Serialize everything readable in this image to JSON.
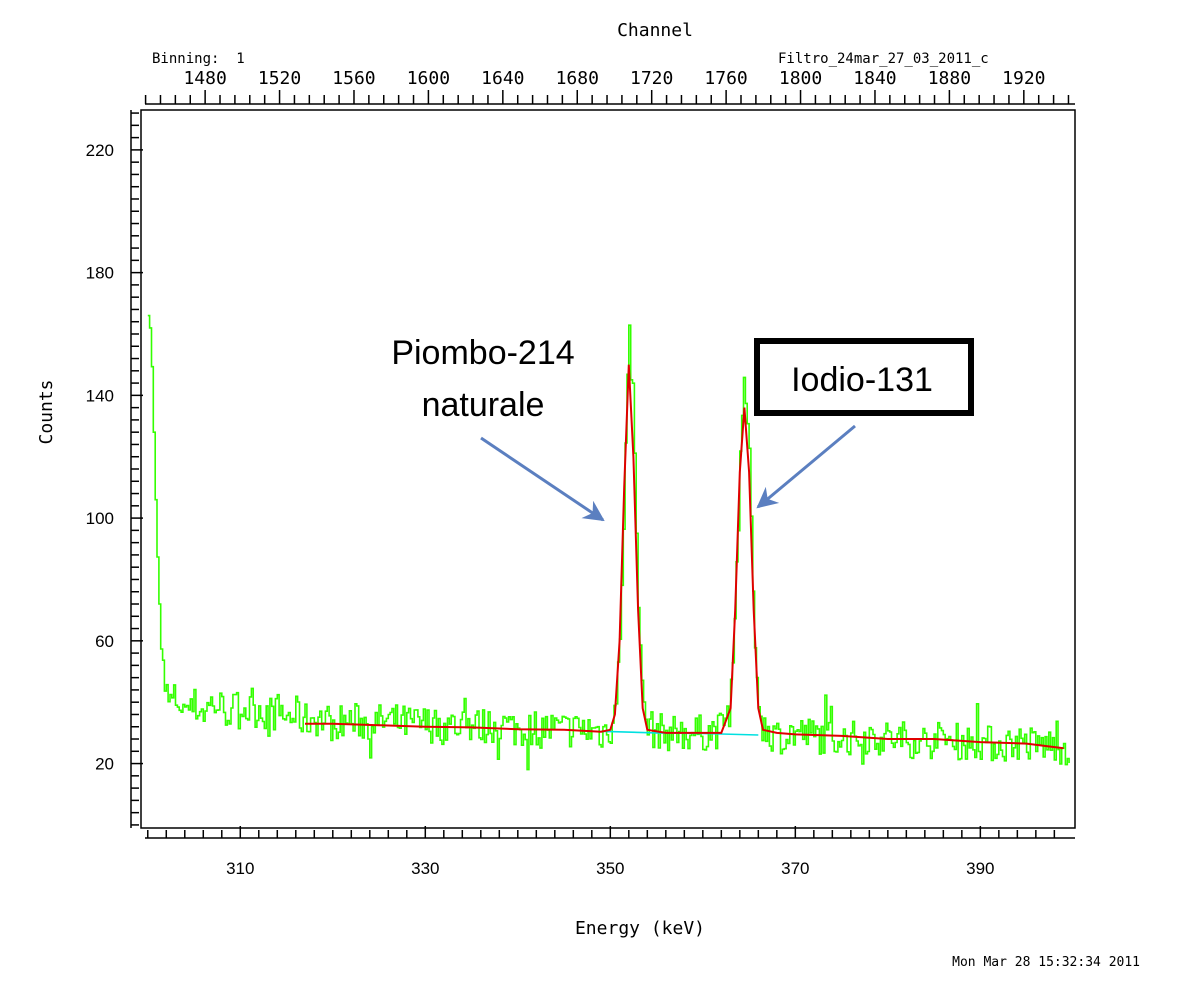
{
  "header": {
    "top_axis_title": "Channel",
    "binning_label": "Binning:  1",
    "file_label": "Filtro_24mar_27_03_2011_c"
  },
  "footer": {
    "xlabel": "Energy (keV)",
    "timestamp": "Mon Mar 28 15:32:34 2011"
  },
  "annotations": {
    "lead_line1": "Piombo-214",
    "lead_line2": "naturale",
    "iodine": "Iodio-131"
  },
  "colors": {
    "data": "#33ff00",
    "fit": "#e00000",
    "baseline": "#00e0e0",
    "arrow": "#5b7fc0",
    "axes": "#000000"
  },
  "chart_data": {
    "type": "line",
    "ylabel": "Counts",
    "xlabel": "Energy (keV)",
    "xlim": [
      299.7,
      399.8
    ],
    "ylim": [
      -1,
      233
    ],
    "x_ticks": [
      310,
      330,
      350,
      370,
      390
    ],
    "y_ticks": [
      20,
      60,
      100,
      140,
      180,
      220
    ],
    "x_minor_step": 2,
    "y_minor_step": 4,
    "top_axis": {
      "label": "Channel",
      "ticks": [
        1480,
        1520,
        1560,
        1600,
        1640,
        1680,
        1720,
        1760,
        1800,
        1840,
        1880,
        1920
      ],
      "energy_at": [
        1480,
        1920
      ],
      "energy_values": [
        306.2,
        394.7
      ],
      "minor_step": 8
    },
    "peaks": [
      {
        "label": "Piombo-214 naturale",
        "center_keV": 352.0,
        "max_counts": 156
      },
      {
        "label": "Iodio-131",
        "center_keV": 364.5,
        "max_counts": 144
      }
    ],
    "background": {
      "x": [
        300,
        350,
        365,
        400
      ],
      "y": [
        32,
        30,
        29,
        26
      ]
    },
    "fit_range": [
      317,
      399
    ],
    "series": [
      {
        "name": "spectrum",
        "description_only": false,
        "points": [
          [
            300.0,
            166
          ],
          [
            300.3,
            160
          ],
          [
            300.6,
            128
          ],
          [
            300.9,
            95
          ],
          [
            301.2,
            72
          ],
          [
            301.5,
            50
          ],
          [
            301.8,
            44
          ],
          [
            302.2,
            40
          ],
          [
            303,
            41
          ],
          [
            304,
            38
          ],
          [
            305,
            39
          ],
          [
            306,
            37
          ],
          [
            307,
            40
          ],
          [
            308,
            38
          ],
          [
            309,
            37
          ],
          [
            310,
            39
          ],
          [
            311,
            37
          ],
          [
            312,
            38
          ],
          [
            313,
            36
          ],
          [
            314,
            37
          ],
          [
            315,
            35
          ],
          [
            316,
            36
          ],
          [
            317,
            34
          ],
          [
            318,
            35
          ],
          [
            320,
            33
          ],
          [
            322,
            34
          ],
          [
            324,
            33
          ],
          [
            326,
            34
          ],
          [
            328,
            33
          ],
          [
            330,
            33
          ],
          [
            332,
            32
          ],
          [
            334,
            33
          ],
          [
            336,
            32
          ],
          [
            338,
            33
          ],
          [
            340,
            31
          ],
          [
            342,
            32
          ],
          [
            344,
            31
          ],
          [
            346,
            31
          ],
          [
            348,
            31
          ],
          [
            349,
            30
          ],
          [
            350,
            32
          ],
          [
            350.6,
            40
          ],
          [
            351.0,
            62
          ],
          [
            351.4,
            100
          ],
          [
            351.7,
            135
          ],
          [
            352.0,
            156
          ],
          [
            352.3,
            150
          ],
          [
            352.6,
            120
          ],
          [
            353.0,
            75
          ],
          [
            353.4,
            45
          ],
          [
            353.8,
            34
          ],
          [
            354.5,
            31
          ],
          [
            356,
            30
          ],
          [
            358,
            30
          ],
          [
            360,
            30
          ],
          [
            362,
            31
          ],
          [
            362.8,
            38
          ],
          [
            363.3,
            60
          ],
          [
            363.8,
            100
          ],
          [
            364.2,
            130
          ],
          [
            364.5,
            144
          ],
          [
            364.8,
            132
          ],
          [
            365.2,
            100
          ],
          [
            365.6,
            60
          ],
          [
            366.0,
            38
          ],
          [
            366.6,
            31
          ],
          [
            368,
            29
          ],
          [
            370,
            30
          ],
          [
            372,
            29
          ],
          [
            374,
            29
          ],
          [
            376,
            28
          ],
          [
            378,
            29
          ],
          [
            380,
            28
          ],
          [
            382,
            28
          ],
          [
            384,
            27
          ],
          [
            386,
            28
          ],
          [
            388,
            27
          ],
          [
            390,
            27
          ],
          [
            392,
            26
          ],
          [
            394,
            27
          ],
          [
            396,
            26
          ],
          [
            398,
            26
          ],
          [
            399.6,
            25
          ]
        ]
      },
      {
        "name": "fit",
        "points": [
          [
            317,
            33
          ],
          [
            320,
            33
          ],
          [
            325,
            32.5
          ],
          [
            330,
            32
          ],
          [
            335,
            31.8
          ],
          [
            340,
            31.2
          ],
          [
            345,
            31
          ],
          [
            349,
            30.4
          ],
          [
            350,
            31
          ],
          [
            350.5,
            36
          ],
          [
            351,
            60
          ],
          [
            351.5,
            110
          ],
          [
            352,
            150
          ],
          [
            352.5,
            120
          ],
          [
            353,
            70
          ],
          [
            353.5,
            38
          ],
          [
            354,
            31
          ],
          [
            356,
            30
          ],
          [
            358,
            30
          ],
          [
            360,
            30
          ],
          [
            362,
            30
          ],
          [
            363,
            38
          ],
          [
            363.5,
            70
          ],
          [
            364,
            115
          ],
          [
            364.5,
            136
          ],
          [
            365,
            115
          ],
          [
            365.5,
            70
          ],
          [
            366,
            38
          ],
          [
            366.5,
            31
          ],
          [
            368,
            30
          ],
          [
            370,
            29.5
          ],
          [
            375,
            29
          ],
          [
            380,
            28
          ],
          [
            385,
            28
          ],
          [
            390,
            27
          ],
          [
            395,
            26.5
          ],
          [
            399,
            25
          ]
        ]
      },
      {
        "name": "baseline",
        "points": [
          [
            349,
            30.5
          ],
          [
            355,
            30
          ],
          [
            360,
            29.8
          ],
          [
            366,
            29.3
          ]
        ]
      }
    ]
  }
}
